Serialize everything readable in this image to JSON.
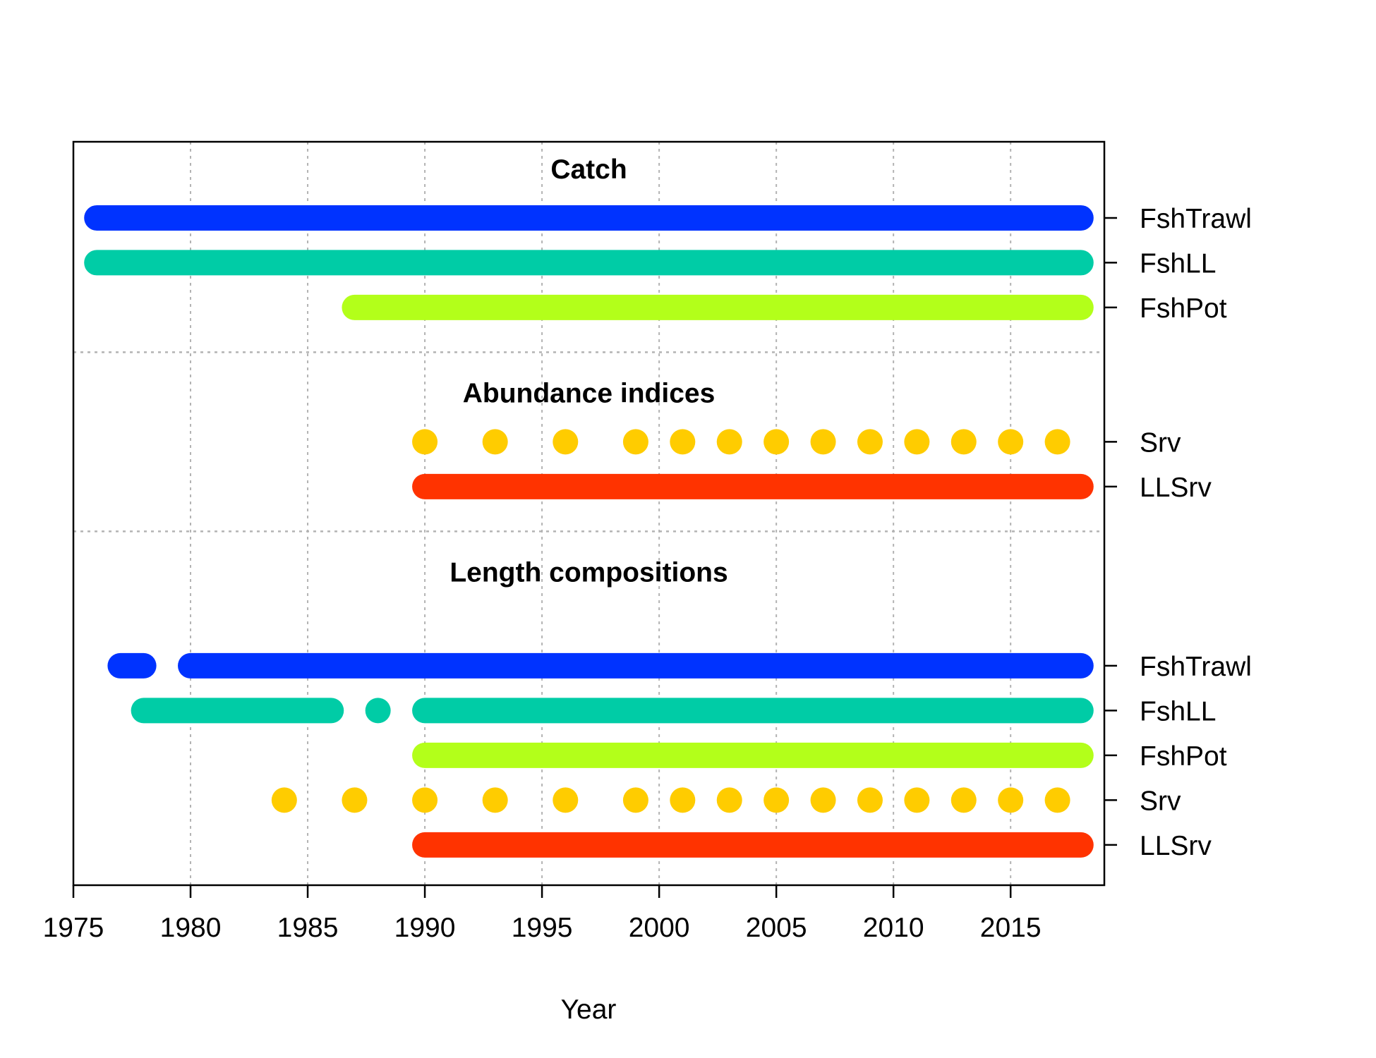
{
  "chart_data": {
    "type": "timeline",
    "xlabel": "Year",
    "xlim": [
      1975,
      2019
    ],
    "xticks": [
      1975,
      1980,
      1985,
      1990,
      1995,
      2000,
      2005,
      2010,
      2015
    ],
    "grid": true,
    "colors": {
      "FshTrawl": "#0033ff",
      "FshLL": "#00cca6",
      "FshPot": "#b3ff1a",
      "Srv": "#ffcc00",
      "LLSrv": "#ff3300"
    },
    "sections": [
      {
        "title": "Catch",
        "rows": [
          {
            "label": "FshTrawl",
            "color": "#0033ff",
            "years": [
              1976,
              1977,
              1978,
              1979,
              1980,
              1981,
              1982,
              1983,
              1984,
              1985,
              1986,
              1987,
              1988,
              1989,
              1990,
              1991,
              1992,
              1993,
              1994,
              1995,
              1996,
              1997,
              1998,
              1999,
              2000,
              2001,
              2002,
              2003,
              2004,
              2005,
              2006,
              2007,
              2008,
              2009,
              2010,
              2011,
              2012,
              2013,
              2014,
              2015,
              2016,
              2017,
              2018
            ]
          },
          {
            "label": "FshLL",
            "color": "#00cca6",
            "years": [
              1976,
              1977,
              1978,
              1979,
              1980,
              1981,
              1982,
              1983,
              1984,
              1985,
              1986,
              1987,
              1988,
              1989,
              1990,
              1991,
              1992,
              1993,
              1994,
              1995,
              1996,
              1997,
              1998,
              1999,
              2000,
              2001,
              2002,
              2003,
              2004,
              2005,
              2006,
              2007,
              2008,
              2009,
              2010,
              2011,
              2012,
              2013,
              2014,
              2015,
              2016,
              2017,
              2018
            ]
          },
          {
            "label": "FshPot",
            "color": "#b3ff1a",
            "years": [
              1987,
              1988,
              1989,
              1990,
              1991,
              1992,
              1993,
              1994,
              1995,
              1996,
              1997,
              1998,
              1999,
              2000,
              2001,
              2002,
              2003,
              2004,
              2005,
              2006,
              2007,
              2008,
              2009,
              2010,
              2011,
              2012,
              2013,
              2014,
              2015,
              2016,
              2017,
              2018
            ]
          }
        ]
      },
      {
        "title": "Abundance indices",
        "rows": [
          {
            "label": "Srv",
            "color": "#ffcc00",
            "years": [
              1990,
              1993,
              1996,
              1999,
              2001,
              2003,
              2005,
              2007,
              2009,
              2011,
              2013,
              2015,
              2017
            ]
          },
          {
            "label": "LLSrv",
            "color": "#ff3300",
            "years": [
              1990,
              1991,
              1992,
              1993,
              1994,
              1995,
              1996,
              1997,
              1998,
              1999,
              2000,
              2001,
              2002,
              2003,
              2004,
              2005,
              2006,
              2007,
              2008,
              2009,
              2010,
              2011,
              2012,
              2013,
              2014,
              2015,
              2016,
              2017,
              2018
            ]
          }
        ]
      },
      {
        "title": "Length compositions",
        "rows": [
          {
            "label": "FshTrawl",
            "color": "#0033ff",
            "years": [
              1977,
              1978,
              1980,
              1981,
              1982,
              1983,
              1984,
              1985,
              1986,
              1987,
              1988,
              1989,
              1990,
              1991,
              1992,
              1993,
              1994,
              1995,
              1996,
              1997,
              1998,
              1999,
              2000,
              2001,
              2002,
              2003,
              2004,
              2005,
              2006,
              2007,
              2008,
              2009,
              2010,
              2011,
              2012,
              2013,
              2014,
              2015,
              2016,
              2017,
              2018
            ]
          },
          {
            "label": "FshLL",
            "color": "#00cca6",
            "years": [
              1978,
              1979,
              1980,
              1981,
              1982,
              1983,
              1984,
              1985,
              1986,
              1988,
              1990,
              1991,
              1992,
              1993,
              1994,
              1995,
              1996,
              1997,
              1998,
              1999,
              2000,
              2001,
              2002,
              2003,
              2004,
              2005,
              2006,
              2007,
              2008,
              2009,
              2010,
              2011,
              2012,
              2013,
              2014,
              2015,
              2016,
              2017,
              2018
            ]
          },
          {
            "label": "FshPot",
            "color": "#b3ff1a",
            "years": [
              1990,
              1991,
              1992,
              1993,
              1994,
              1995,
              1996,
              1997,
              1998,
              1999,
              2000,
              2001,
              2002,
              2003,
              2004,
              2005,
              2006,
              2007,
              2008,
              2009,
              2010,
              2011,
              2012,
              2013,
              2014,
              2015,
              2016,
              2017,
              2018
            ]
          },
          {
            "label": "Srv",
            "color": "#ffcc00",
            "years": [
              1984,
              1987,
              1990,
              1993,
              1996,
              1999,
              2001,
              2003,
              2005,
              2007,
              2009,
              2011,
              2013,
              2015,
              2017
            ]
          },
          {
            "label": "LLSrv",
            "color": "#ff3300",
            "years": [
              1990,
              1991,
              1992,
              1993,
              1994,
              1995,
              1996,
              1997,
              1998,
              1999,
              2000,
              2001,
              2002,
              2003,
              2004,
              2005,
              2006,
              2007,
              2008,
              2009,
              2010,
              2011,
              2012,
              2013,
              2014,
              2015,
              2016,
              2017,
              2018
            ]
          }
        ]
      }
    ]
  }
}
